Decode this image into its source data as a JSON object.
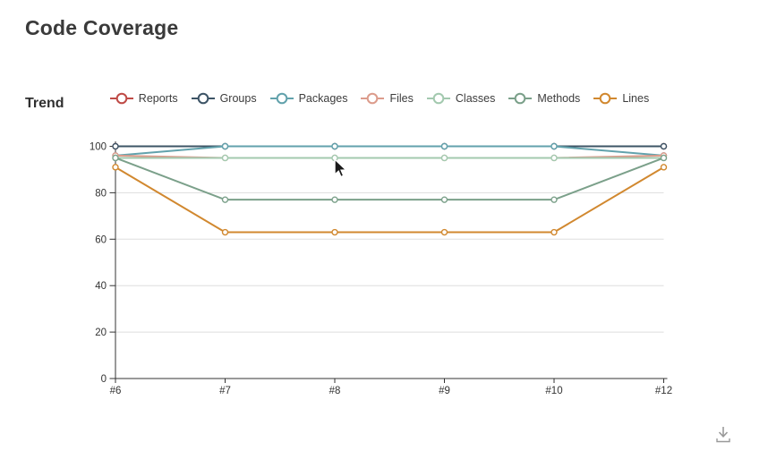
{
  "page": {
    "title": "Code Coverage"
  },
  "trend_section": {
    "title": "Trend"
  },
  "icons": {
    "download": "download-icon",
    "cursor": "mouse-cursor"
  },
  "colors": {
    "axis": "#333333",
    "grid": "#dddddd",
    "tick_text": "#333333",
    "download_icon": "#999999"
  },
  "chart_data": {
    "type": "line",
    "title": "Trend",
    "categories": [
      "#6",
      "#7",
      "#8",
      "#9",
      "#10",
      "#12"
    ],
    "series": [
      {
        "name": "Reports",
        "color": "#bf4b47",
        "values": [
          100,
          100,
          100,
          100,
          100,
          100
        ]
      },
      {
        "name": "Groups",
        "color": "#3d5466",
        "values": [
          100,
          100,
          100,
          100,
          100,
          100
        ]
      },
      {
        "name": "Packages",
        "color": "#62a2ac",
        "values": [
          96,
          100,
          100,
          100,
          100,
          96
        ]
      },
      {
        "name": "Files",
        "color": "#dc9c8c",
        "values": [
          96,
          95,
          95,
          95,
          95,
          96
        ]
      },
      {
        "name": "Classes",
        "color": "#a3c9af",
        "values": [
          95,
          95,
          95,
          95,
          95,
          95
        ]
      },
      {
        "name": "Methods",
        "color": "#7ba08a",
        "values": [
          95,
          77,
          77,
          77,
          77,
          95
        ]
      },
      {
        "name": "Lines",
        "color": "#d1882f",
        "values": [
          91,
          63,
          63,
          63,
          63,
          91
        ]
      }
    ],
    "xlabel": "",
    "ylabel": "",
    "ylim": [
      0,
      100
    ],
    "yticks": [
      0,
      20,
      40,
      60,
      80,
      100
    ],
    "grid": true,
    "legend_position": "top"
  }
}
